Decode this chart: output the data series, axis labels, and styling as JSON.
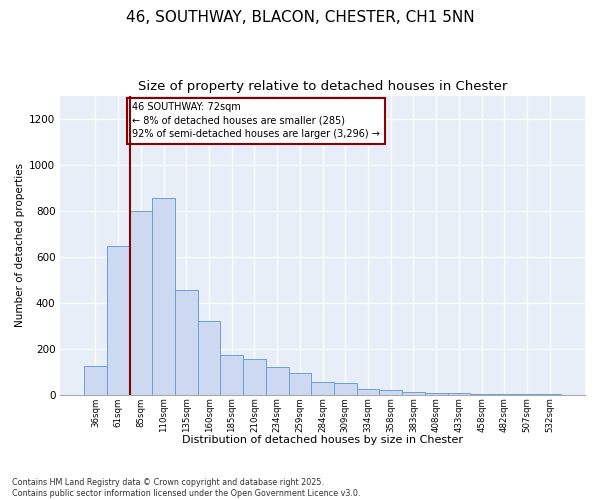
{
  "title_line1": "46, SOUTHWAY, BLACON, CHESTER, CH1 5NN",
  "title_line2": "Size of property relative to detached houses in Chester",
  "xlabel": "Distribution of detached houses by size in Chester",
  "ylabel": "Number of detached properties",
  "bar_color": "#ccd9f0",
  "bar_edge_color": "#6b9fd4",
  "background_color": "#e8eef8",
  "vline_color": "#8b0000",
  "annotation_text": "46 SOUTHWAY: 72sqm\n← 8% of detached houses are smaller (285)\n92% of semi-detached houses are larger (3,296) →",
  "categories": [
    "36sqm",
    "61sqm",
    "85sqm",
    "110sqm",
    "135sqm",
    "160sqm",
    "185sqm",
    "210sqm",
    "234sqm",
    "259sqm",
    "284sqm",
    "309sqm",
    "334sqm",
    "358sqm",
    "383sqm",
    "408sqm",
    "433sqm",
    "458sqm",
    "482sqm",
    "507sqm",
    "532sqm"
  ],
  "values": [
    125,
    645,
    800,
    855,
    455,
    320,
    170,
    155,
    120,
    95,
    55,
    50,
    25,
    20,
    10,
    5,
    5,
    3,
    2,
    3,
    2
  ],
  "ylim": [
    0,
    1300
  ],
  "yticks": [
    0,
    200,
    400,
    600,
    800,
    1000,
    1200
  ],
  "footnote": "Contains HM Land Registry data © Crown copyright and database right 2025.\nContains public sector information licensed under the Open Government Licence v3.0.",
  "title_fontsize": 11,
  "subtitle_fontsize": 9.5
}
